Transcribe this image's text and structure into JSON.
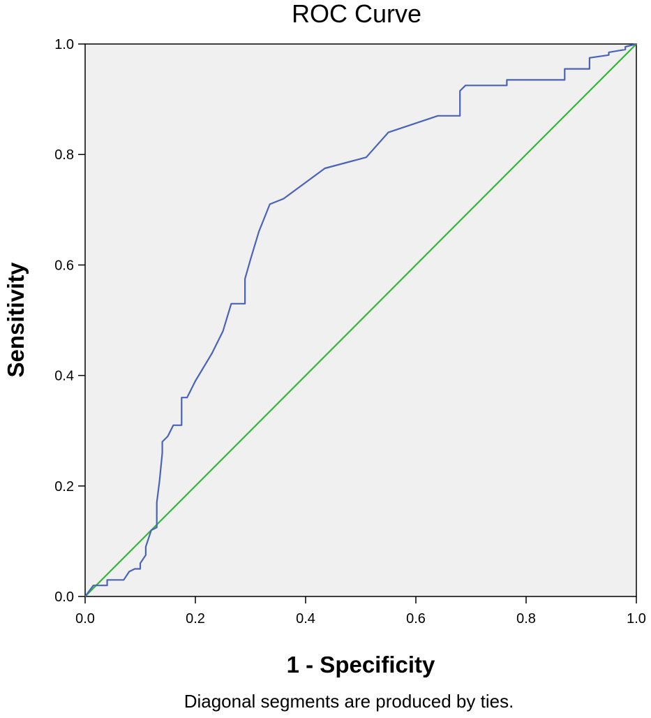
{
  "chart_data": {
    "type": "line",
    "title": "ROC Curve",
    "xlabel": "1 - Specificity",
    "ylabel": "Sensitivity",
    "xlim": [
      0,
      1
    ],
    "ylim": [
      0,
      1
    ],
    "x_ticks": [
      "0.0",
      "0.2",
      "0.4",
      "0.6",
      "0.8",
      "1.0"
    ],
    "y_ticks": [
      "0.0",
      "0.2",
      "0.4",
      "0.6",
      "0.8",
      "1.0"
    ],
    "footnote": "Diagonal segments are produced by ties.",
    "plot_background": "#f0f0f0",
    "grid": false,
    "legend": "none",
    "series": [
      {
        "color": "#4a63b8",
        "x": [
          0.0,
          0.015,
          0.015,
          0.04,
          0.04,
          0.07,
          0.08,
          0.09,
          0.1,
          0.1,
          0.11,
          0.11,
          0.12,
          0.13,
          0.13,
          0.135,
          0.14,
          0.14,
          0.15,
          0.16,
          0.16,
          0.175,
          0.175,
          0.185,
          0.2,
          0.23,
          0.25,
          0.265,
          0.265,
          0.29,
          0.29,
          0.3,
          0.315,
          0.335,
          0.36,
          0.435,
          0.51,
          0.55,
          0.64,
          0.68,
          0.68,
          0.69,
          0.765,
          0.765,
          0.87,
          0.87,
          0.915,
          0.915,
          0.95,
          0.95,
          0.98,
          0.98,
          1.0
        ],
        "y": [
          0.0,
          0.02,
          0.02,
          0.02,
          0.03,
          0.03,
          0.045,
          0.05,
          0.05,
          0.06,
          0.075,
          0.09,
          0.12,
          0.125,
          0.17,
          0.21,
          0.26,
          0.28,
          0.29,
          0.31,
          0.31,
          0.31,
          0.36,
          0.36,
          0.39,
          0.44,
          0.48,
          0.53,
          0.53,
          0.53,
          0.575,
          0.61,
          0.66,
          0.71,
          0.72,
          0.775,
          0.795,
          0.84,
          0.87,
          0.87,
          0.915,
          0.925,
          0.925,
          0.935,
          0.935,
          0.955,
          0.955,
          0.975,
          0.98,
          0.985,
          0.99,
          0.995,
          1.0
        ]
      },
      {
        "color": "#35b53a",
        "x": [
          0,
          1
        ],
        "y": [
          0,
          1
        ]
      }
    ]
  }
}
